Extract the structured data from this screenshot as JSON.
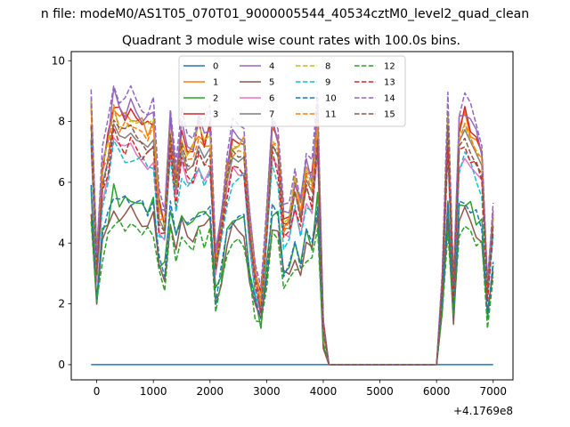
{
  "figure": {
    "suptitle": "n file: modeM0/AS1T05_070T01_9000005544_40534cztM0_level2_quad_clean",
    "title": "Quadrant 3 module wise count rates with 100.0s bins.",
    "x_offset_label": "+4.1769e8"
  },
  "chart_data": {
    "type": "line",
    "title": "Quadrant 3 module wise count rates with 100.0s bins.",
    "xlabel": "",
    "ylabel": "",
    "x_offset": 417690000,
    "xlim": [
      -450,
      7350
    ],
    "ylim": [
      -0.5,
      10.3
    ],
    "xticks": [
      0,
      1000,
      2000,
      3000,
      4000,
      5000,
      6000,
      7000
    ],
    "xtick_labels": [
      "0",
      "1000",
      "2000",
      "3000",
      "4000",
      "5000",
      "6000",
      "7000"
    ],
    "yticks": [
      0,
      2,
      4,
      6,
      8,
      10
    ],
    "ytick_labels": [
      "0",
      "2",
      "4",
      "6",
      "8",
      "10"
    ],
    "legend": {
      "location": "top-center",
      "columns": 4
    },
    "x": [
      -100,
      0,
      100,
      200,
      300,
      400,
      500,
      600,
      700,
      800,
      900,
      1000,
      1100,
      1200,
      1300,
      1400,
      1500,
      1600,
      1700,
      1800,
      1900,
      2000,
      2100,
      2200,
      2300,
      2400,
      2500,
      2600,
      2700,
      2800,
      2900,
      3000,
      3100,
      3200,
      3300,
      3400,
      3500,
      3600,
      3700,
      3800,
      3900,
      4000,
      4100,
      4200,
      4300,
      4400,
      4500,
      4600,
      4700,
      4800,
      4900,
      5000,
      5100,
      5200,
      5300,
      5400,
      5500,
      5600,
      5700,
      5800,
      5900,
      6000,
      6100,
      6200,
      6300,
      6400,
      6500,
      6600,
      6700,
      6800,
      6900,
      7000
    ],
    "base_profile": [
      1.0,
      0.4,
      0.75,
      0.85,
      1.0,
      0.95,
      0.94,
      0.96,
      0.93,
      0.92,
      0.9,
      0.93,
      0.6,
      0.55,
      0.93,
      0.72,
      0.88,
      0.8,
      0.82,
      0.9,
      0.85,
      0.89,
      0.4,
      0.55,
      0.75,
      0.85,
      0.83,
      0.85,
      0.55,
      0.35,
      0.25,
      0.55,
      0.9,
      0.85,
      0.55,
      0.55,
      0.7,
      0.6,
      0.75,
      0.7,
      0.95,
      0.15,
      0.0,
      0.0,
      0.0,
      0.0,
      0.0,
      0.0,
      0.0,
      0.0,
      0.0,
      0.0,
      0.0,
      0.0,
      0.0,
      0.0,
      0.0,
      0.0,
      0.0,
      0.0,
      0.0,
      0.0,
      0.3,
      0.95,
      0.3,
      0.9,
      0.95,
      0.9,
      0.85,
      0.8,
      0.3,
      0.55
    ],
    "series": [
      {
        "name": "0",
        "color": "#1f77b4",
        "dash": "solid",
        "level": 0.0
      },
      {
        "name": "1",
        "color": "#ff7f0e",
        "dash": "solid",
        "level": 8.6
      },
      {
        "name": "2",
        "color": "#2ca02c",
        "dash": "solid",
        "level": 5.7
      },
      {
        "name": "3",
        "color": "#d62728",
        "dash": "solid",
        "level": 8.7
      },
      {
        "name": "4",
        "color": "#9467bd",
        "dash": "solid",
        "level": 8.9
      },
      {
        "name": "5",
        "color": "#8c564b",
        "dash": "solid",
        "level": 5.2
      },
      {
        "name": "6",
        "color": "#e377c2",
        "dash": "solid",
        "level": 7.4
      },
      {
        "name": "7",
        "color": "#7f7f7f",
        "dash": "solid",
        "level": 7.9
      },
      {
        "name": "8",
        "color": "#bcbd22",
        "dash": "dashed",
        "level": 8.5
      },
      {
        "name": "9",
        "color": "#17becf",
        "dash": "dashed",
        "level": 7.2
      },
      {
        "name": "10",
        "color": "#1f77b4",
        "dash": "dashed",
        "level": 5.7
      },
      {
        "name": "11",
        "color": "#ff7f0e",
        "dash": "dashed",
        "level": 8.3
      },
      {
        "name": "12",
        "color": "#2ca02c",
        "dash": "dashed",
        "level": 4.8
      },
      {
        "name": "13",
        "color": "#d62728",
        "dash": "dashed",
        "level": 7.6
      },
      {
        "name": "14",
        "color": "#9467bd",
        "dash": "dashed",
        "level": 9.3
      },
      {
        "name": "15",
        "color": "#8c564b",
        "dash": "dashed",
        "level": 8.0
      }
    ]
  }
}
